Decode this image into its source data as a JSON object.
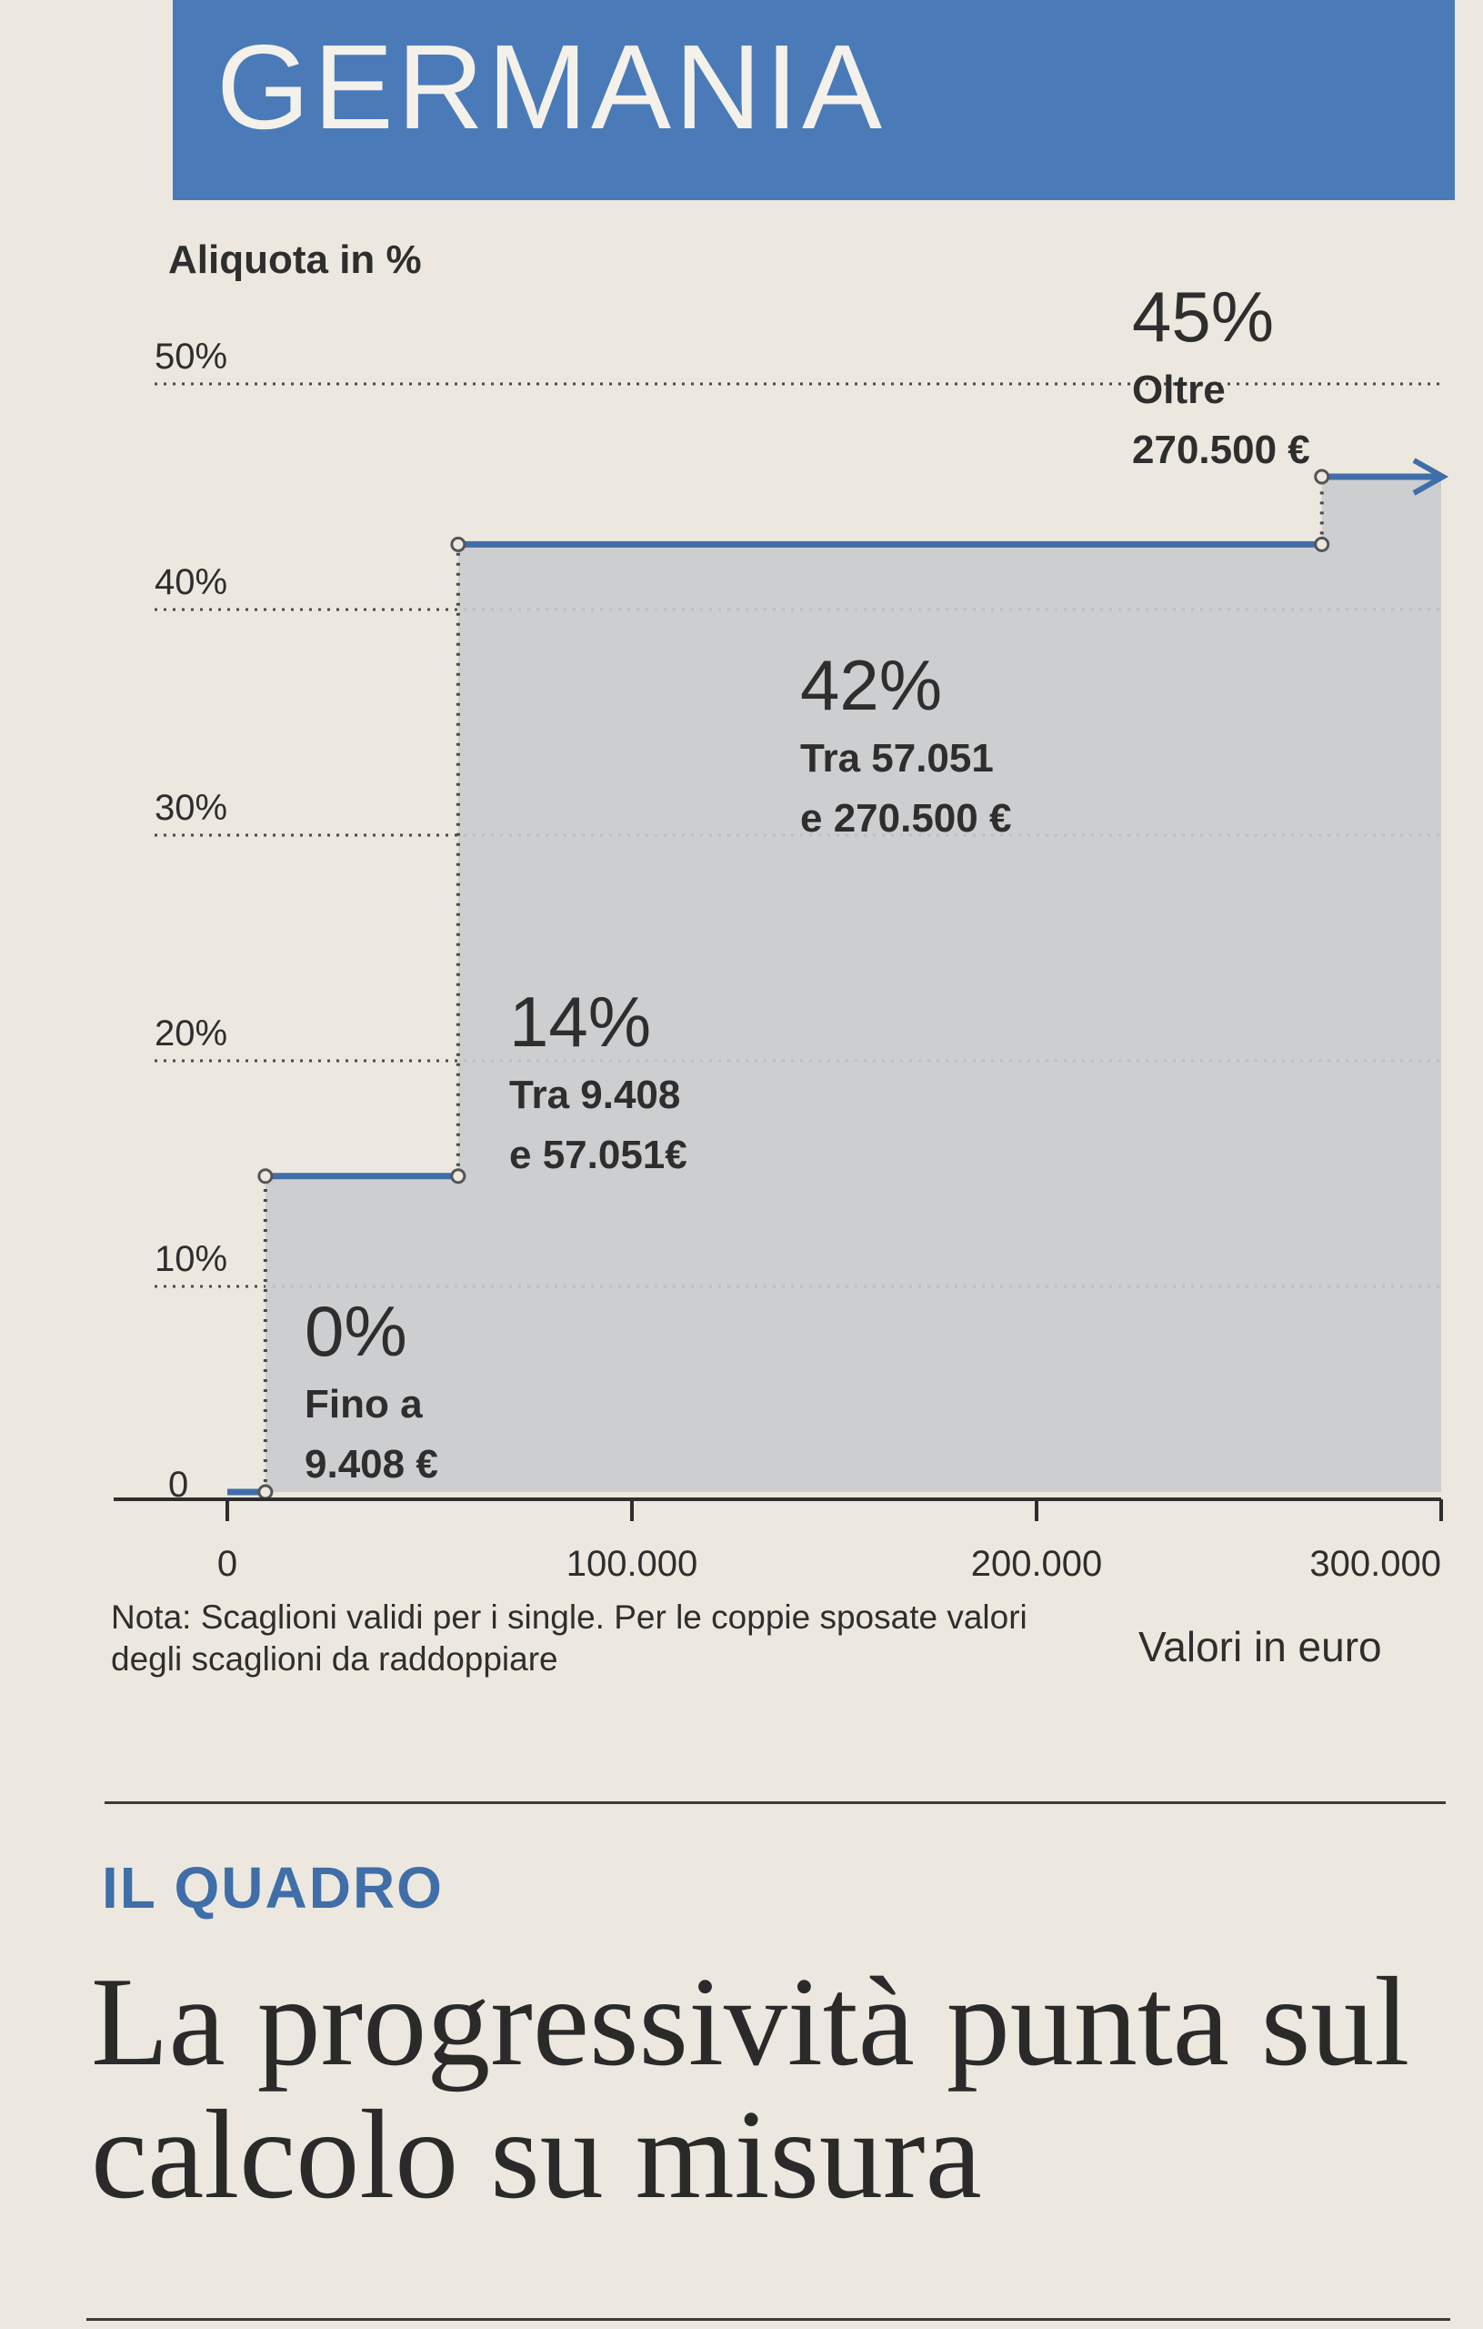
{
  "header": {
    "title": "GERMANIA"
  },
  "chart_data": {
    "type": "area",
    "ylabel": "Aliquota in %",
    "xlabel": "Valori in euro",
    "xlim": [
      0,
      300000
    ],
    "ylim": [
      0,
      50
    ],
    "x_ticks": [
      "0",
      "100.000",
      "200.000",
      "300.000"
    ],
    "y_ticks": [
      "0",
      "10%",
      "20%",
      "30%",
      "40%",
      "50%"
    ],
    "grid": true,
    "step_line": [
      {
        "x": 0,
        "y": 0
      },
      {
        "x": 9408,
        "y": 0
      },
      {
        "x": 9408,
        "y": 14
      },
      {
        "x": 57051,
        "y": 14
      },
      {
        "x": 57051,
        "y": 42
      },
      {
        "x": 270500,
        "y": 42
      },
      {
        "x": 270500,
        "y": 45
      },
      {
        "x": 300000,
        "y": 45
      }
    ],
    "brackets": [
      {
        "rate": "0%",
        "line1": "Fino a",
        "line2": "9.408 €"
      },
      {
        "rate": "14%",
        "line1": "Tra 9.408",
        "line2": "e 57.051€"
      },
      {
        "rate": "42%",
        "line1": "Tra 57.051",
        "line2": "e 270.500 €"
      },
      {
        "rate": "45%",
        "line1": "Oltre",
        "line2": "270.500 €"
      }
    ],
    "colors": {
      "line": "#3f6ea8",
      "fill": "#c9cbcd",
      "grid": "#4a4a4a"
    }
  },
  "note": "Nota: Scaglioni validi per i single. Per le coppie sposate valori degli scaglioni da raddoppiare",
  "kicker": "IL QUADRO",
  "headline": "La progressività punta sul calcolo su misura"
}
